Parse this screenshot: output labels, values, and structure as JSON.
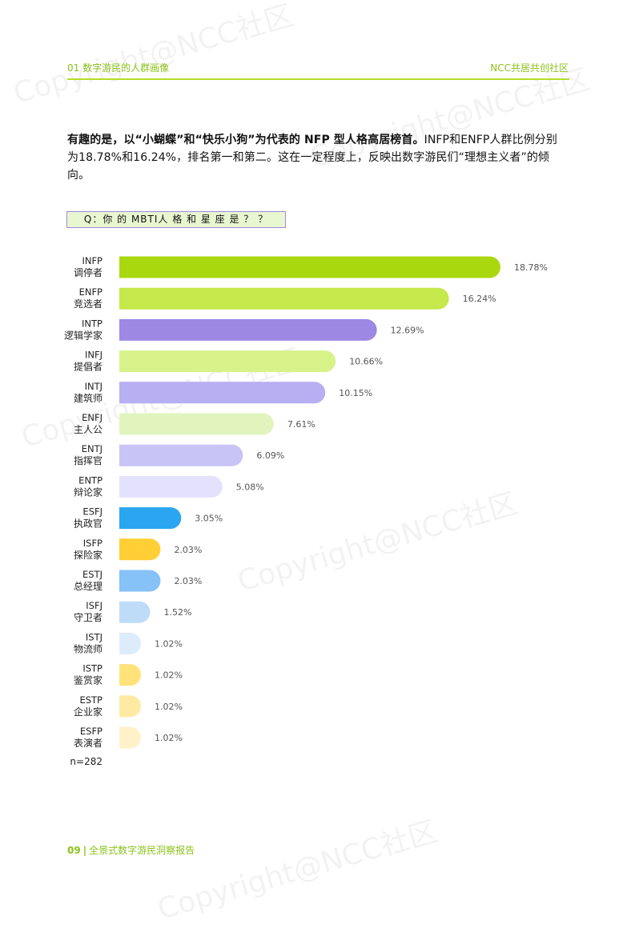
{
  "header": {
    "left": "01 数字游民的人群画像",
    "right": "NCC共居共创社区"
  },
  "intro": {
    "bold": "有趣的是，以“小蝴蝶”和“快乐小狗”为代表的 NFP 型人格高居榜首。",
    "normal": "INFP和ENFP人群比例分别为18.78%和16.24%，排名第一和第二。这在一定程度上，反映出数字游民们“理想主义者”的倾向。"
  },
  "question": "Q：你 的 MBTI人 格 和 星 座 是 ？ ？",
  "chart_data": {
    "type": "bar",
    "orientation": "horizontal",
    "categories": [
      {
        "code": "INFP",
        "name": "调停者",
        "value": 18.78,
        "label": "18.78%",
        "color": "#aad80e"
      },
      {
        "code": "ENFP",
        "name": "竞选者",
        "value": 16.24,
        "label": "16.24%",
        "color": "#c5e84a"
      },
      {
        "code": "INTP",
        "name": "逻辑学家",
        "value": 12.69,
        "label": "12.69%",
        "color": "#9d89e4"
      },
      {
        "code": "INFJ",
        "name": "提倡者",
        "value": 10.66,
        "label": "10.66%",
        "color": "#d8f28a"
      },
      {
        "code": "INTJ",
        "name": "建筑师",
        "value": 10.15,
        "label": "10.15%",
        "color": "#b8aef2"
      },
      {
        "code": "ENFJ",
        "name": "主人公",
        "value": 7.61,
        "label": "7.61%",
        "color": "#e2f4bd"
      },
      {
        "code": "ENTJ",
        "name": "指挥官",
        "value": 6.09,
        "label": "6.09%",
        "color": "#c9c4f6"
      },
      {
        "code": "ENTP",
        "name": "辩论家",
        "value": 5.08,
        "label": "5.08%",
        "color": "#e3e1fb"
      },
      {
        "code": "ESFJ",
        "name": "执政官",
        "value": 3.05,
        "label": "3.05%",
        "color": "#2aa6f0"
      },
      {
        "code": "ISFP",
        "name": "探险家",
        "value": 2.03,
        "label": "2.03%",
        "color": "#ffcf35"
      },
      {
        "code": "ESTJ",
        "name": "总经理",
        "value": 2.03,
        "label": "2.03%",
        "color": "#86c1f8"
      },
      {
        "code": "ISFJ",
        "name": "守卫者",
        "value": 1.52,
        "label": "1.52%",
        "color": "#bedcf8"
      },
      {
        "code": "ISTJ",
        "name": "物流师",
        "value": 1.02,
        "label": "1.02%",
        "color": "#dcecfb"
      },
      {
        "code": "ISTP",
        "name": "鉴赏家",
        "value": 1.02,
        "label": "1.02%",
        "color": "#ffe27a"
      },
      {
        "code": "ESTP",
        "name": "企业家",
        "value": 1.02,
        "label": "1.02%",
        "color": "#ffeaa3"
      },
      {
        "code": "ESFP",
        "name": "表演者",
        "value": 1.02,
        "label": "1.02%",
        "color": "#fff2c9"
      }
    ],
    "sample_size": "n=282",
    "grid": false,
    "legend": "none"
  },
  "footer": {
    "page": "09",
    "separator": "|",
    "title": "全景式数字游民洞察报告"
  },
  "watermark": "Copyright@NCC社区"
}
